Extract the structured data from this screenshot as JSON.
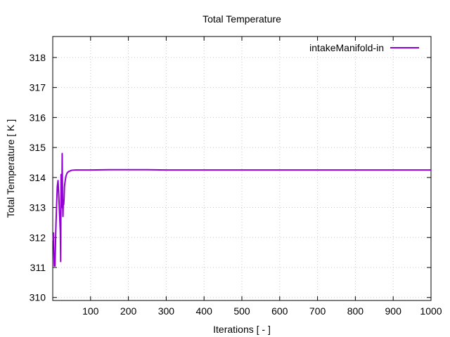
{
  "chart_data": {
    "type": "line",
    "title": "Total Temperature",
    "xlabel": "Iterations [ - ]",
    "ylabel": "Total Temperature [ K ]",
    "xlim": [
      0,
      1000
    ],
    "ylim": [
      309.9,
      318.7
    ],
    "x_ticks": [
      100,
      200,
      300,
      400,
      500,
      600,
      700,
      800,
      900,
      1000
    ],
    "y_ticks": [
      310,
      311,
      312,
      313,
      314,
      315,
      316,
      317,
      318
    ],
    "grid": true,
    "legend_position": "top-right",
    "series": [
      {
        "name": "intakeManifold-in",
        "color": "#9400d3",
        "x": [
          1,
          2,
          3,
          4,
          5,
          6,
          7,
          8,
          10,
          12,
          14,
          16,
          18,
          20,
          21,
          22,
          23,
          24,
          25,
          26,
          27,
          28,
          29,
          30,
          31,
          33,
          35,
          38,
          42,
          46,
          50,
          60,
          80,
          100,
          150,
          200,
          250,
          300,
          400,
          500,
          600,
          700,
          800,
          900,
          1000
        ],
        "y": [
          311.9,
          312.15,
          311.5,
          311.05,
          311.3,
          311.05,
          311.6,
          312.2,
          313.0,
          313.7,
          313.9,
          313.4,
          312.8,
          312.2,
          311.2,
          314.1,
          313.5,
          313.0,
          314.8,
          313.2,
          312.7,
          313.2,
          313.1,
          313.3,
          313.7,
          313.9,
          314.05,
          314.15,
          314.2,
          314.22,
          314.24,
          314.25,
          314.25,
          314.25,
          314.26,
          314.26,
          314.26,
          314.25,
          314.25,
          314.25,
          314.25,
          314.25,
          314.25,
          314.25,
          314.25
        ]
      }
    ]
  }
}
